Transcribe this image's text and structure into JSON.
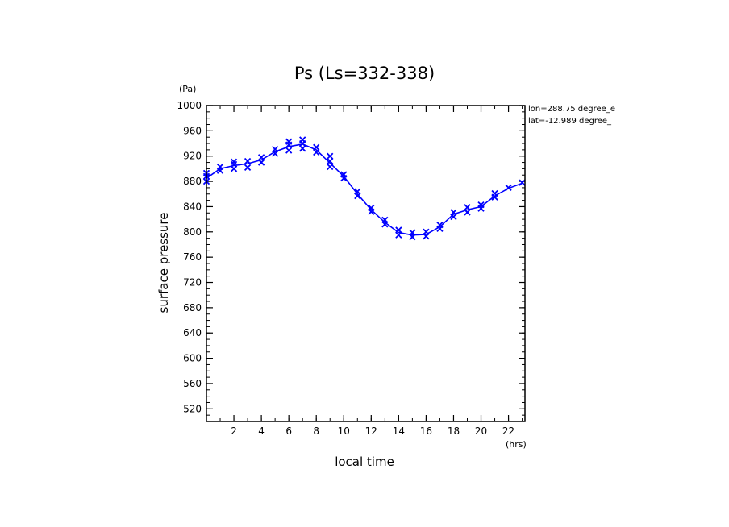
{
  "chart_data": {
    "type": "line",
    "title": "Ps (Ls=332-338)",
    "xlabel": "local time",
    "ylabel": "surface pressure",
    "x_unit": "(hrs)",
    "y_unit": "(Pa)",
    "xlim": [
      0,
      23.2
    ],
    "ylim": [
      500,
      1000
    ],
    "x_ticks": [
      2,
      4,
      6,
      8,
      10,
      12,
      14,
      16,
      18,
      20,
      22
    ],
    "y_ticks": [
      520,
      560,
      600,
      640,
      680,
      720,
      760,
      800,
      840,
      880,
      920,
      960,
      1000
    ],
    "grid": false,
    "annotations": [
      "lon=288.75 degree_e",
      "lat=-12.989 degree_"
    ],
    "series": [
      {
        "color": "#0000ff",
        "marker": "x",
        "x": [
          0,
          1,
          2,
          3,
          4,
          5,
          6,
          7,
          8,
          9,
          10,
          11,
          12,
          13,
          14,
          15,
          16,
          17,
          18,
          19,
          20,
          21,
          22,
          23
        ],
        "values": [
          885,
          900,
          905,
          908,
          914,
          927,
          935,
          939,
          930,
          909,
          888,
          860,
          835,
          815,
          799,
          795,
          796,
          808,
          828,
          835,
          840,
          857,
          869,
          877
        ]
      }
    ],
    "scatter_points": {
      "x": [
        0,
        0,
        0,
        1,
        1,
        2,
        2,
        2,
        3,
        3,
        4,
        4,
        5,
        5,
        6,
        6,
        6,
        7,
        7,
        7,
        8,
        8,
        9,
        9,
        9,
        10,
        10,
        11,
        11,
        12,
        12,
        13,
        13,
        14,
        14,
        15,
        15,
        16,
        16,
        17,
        17,
        18,
        18,
        19,
        19,
        20,
        20,
        21,
        21,
        22,
        23
      ],
      "y": [
        880,
        888,
        893,
        897,
        903,
        900,
        907,
        911,
        902,
        912,
        910,
        918,
        924,
        931,
        929,
        938,
        943,
        932,
        940,
        946,
        926,
        934,
        903,
        912,
        920,
        885,
        891,
        857,
        864,
        832,
        838,
        812,
        819,
        795,
        803,
        792,
        799,
        793,
        800,
        805,
        811,
        824,
        831,
        831,
        839,
        837,
        843,
        855,
        861,
        870,
        878
      ]
    }
  }
}
